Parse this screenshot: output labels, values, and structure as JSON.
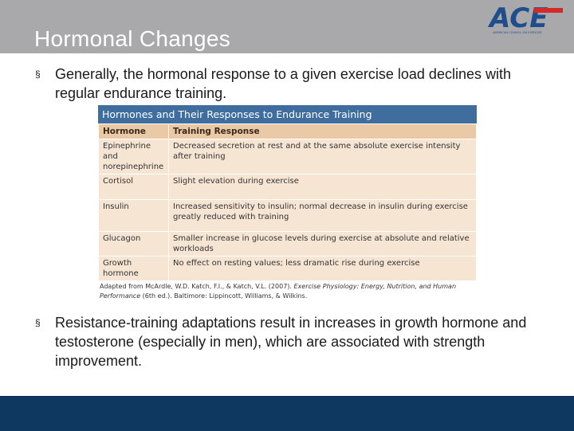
{
  "slide": {
    "title": "Hormonal Changes",
    "logo_text": "ACE",
    "logo_tagline": "AMERICAN COUNCIL ON EXERCISE",
    "bullet_symbol": "§",
    "bullets": [
      "Generally, the hormonal response to a given exercise load declines with regular endurance training.",
      "Resistance-training adaptations result in increases in growth hormone and testosterone (especially in men), which are associated with strength improvement."
    ]
  },
  "table": {
    "title": "Hormones and Their Responses to Endurance Training",
    "headers": [
      "Hormone",
      "Training Response"
    ],
    "rows": [
      [
        "Epinephrine and norepinephrine",
        "Decreased secretion at rest and at the same absolute exercise intensity after training"
      ],
      [
        "Cortisol",
        "Slight elevation during exercise"
      ],
      [
        "Insulin",
        "Increased sensitivity to insulin; normal decrease in insulin during exercise greatly reduced with training"
      ],
      [
        "Glucagon",
        "Smaller increase in glucose levels during exercise at absolute and relative workloads"
      ],
      [
        "Growth hormone",
        "No effect on resting values; less dramatic rise during exercise"
      ]
    ],
    "caption_prefix": "Adapted from McArdle, W.D. Katch, F.I., & Katch, V.L. (2007).",
    "caption_book": "Exercise Physiology: Energy, Nutrition, and Human Performance",
    "caption_suffix": "(6th ed.). Baltimore: Lippincott, Williams, & Wilkins."
  },
  "colors": {
    "header_bg": "#a9a9ab",
    "logo_blue": "#1f4e8c",
    "logo_red": "#d42a2a",
    "table_title_bg": "#3f6d9e",
    "table_head_bg": "#e9c9a6",
    "table_cell_bg": "#f7e5d4",
    "footer_bg": "#0f3860"
  }
}
